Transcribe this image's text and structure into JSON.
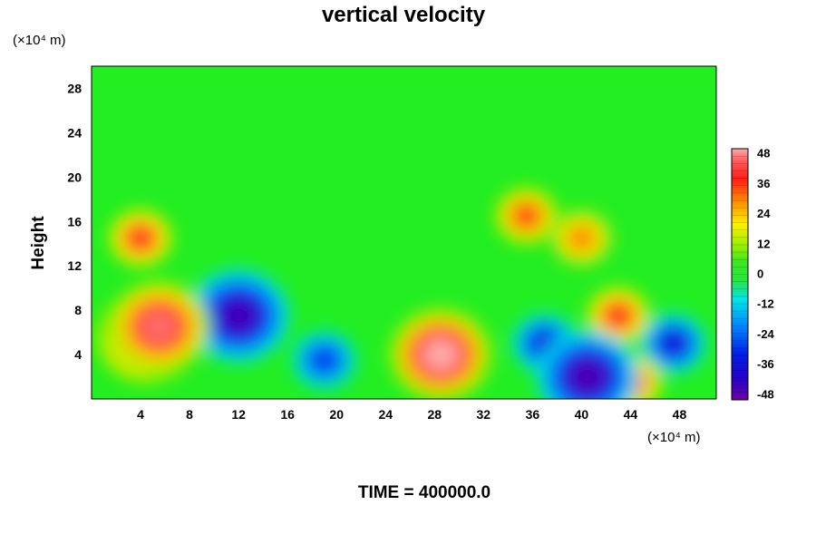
{
  "chart_data": {
    "type": "heatmap",
    "title": "vertical velocity",
    "ylabel": "Height",
    "y_unit": "(×10⁴ m)",
    "x_unit": "(×10⁴ m)",
    "xlim": [
      0,
      51
    ],
    "ylim": [
      0,
      30
    ],
    "x_ticks": [
      "4",
      "8",
      "12",
      "16",
      "20",
      "24",
      "28",
      "32",
      "36",
      "40",
      "44",
      "48"
    ],
    "y_ticks": [
      "4",
      "8",
      "12",
      "16",
      "20",
      "24",
      "28"
    ],
    "colorbar": {
      "range": [
        -50,
        50
      ],
      "ticks": [
        "48",
        "36",
        "24",
        "12",
        "0",
        "-12",
        "-24",
        "-36",
        "-48"
      ]
    },
    "footer": "TIME = 400000.0",
    "features": [
      {
        "x": 4.5,
        "y": 5.5,
        "value": 42
      },
      {
        "x": 5.5,
        "y": 6.5,
        "value": 46
      },
      {
        "x": 28.5,
        "y": 4,
        "value": 50
      },
      {
        "x": 12,
        "y": 7.5,
        "value": -45
      },
      {
        "x": 19,
        "y": 3.5,
        "value": -30
      },
      {
        "x": 37,
        "y": 5,
        "value": -35
      },
      {
        "x": 40.5,
        "y": 2,
        "value": -46
      },
      {
        "x": 47.5,
        "y": 5,
        "value": -38
      },
      {
        "x": 43,
        "y": 7.5,
        "value": 40
      },
      {
        "x": 44,
        "y": 1.5,
        "value": 40
      },
      {
        "x": 4,
        "y": 14.5,
        "value": 40
      },
      {
        "x": 35.5,
        "y": 16.5,
        "value": 36
      },
      {
        "x": 40,
        "y": 14.5,
        "value": 30
      }
    ],
    "colors": {
      "background": "#22ee22",
      "max": "#ff9898",
      "min": "#7000a0"
    }
  }
}
